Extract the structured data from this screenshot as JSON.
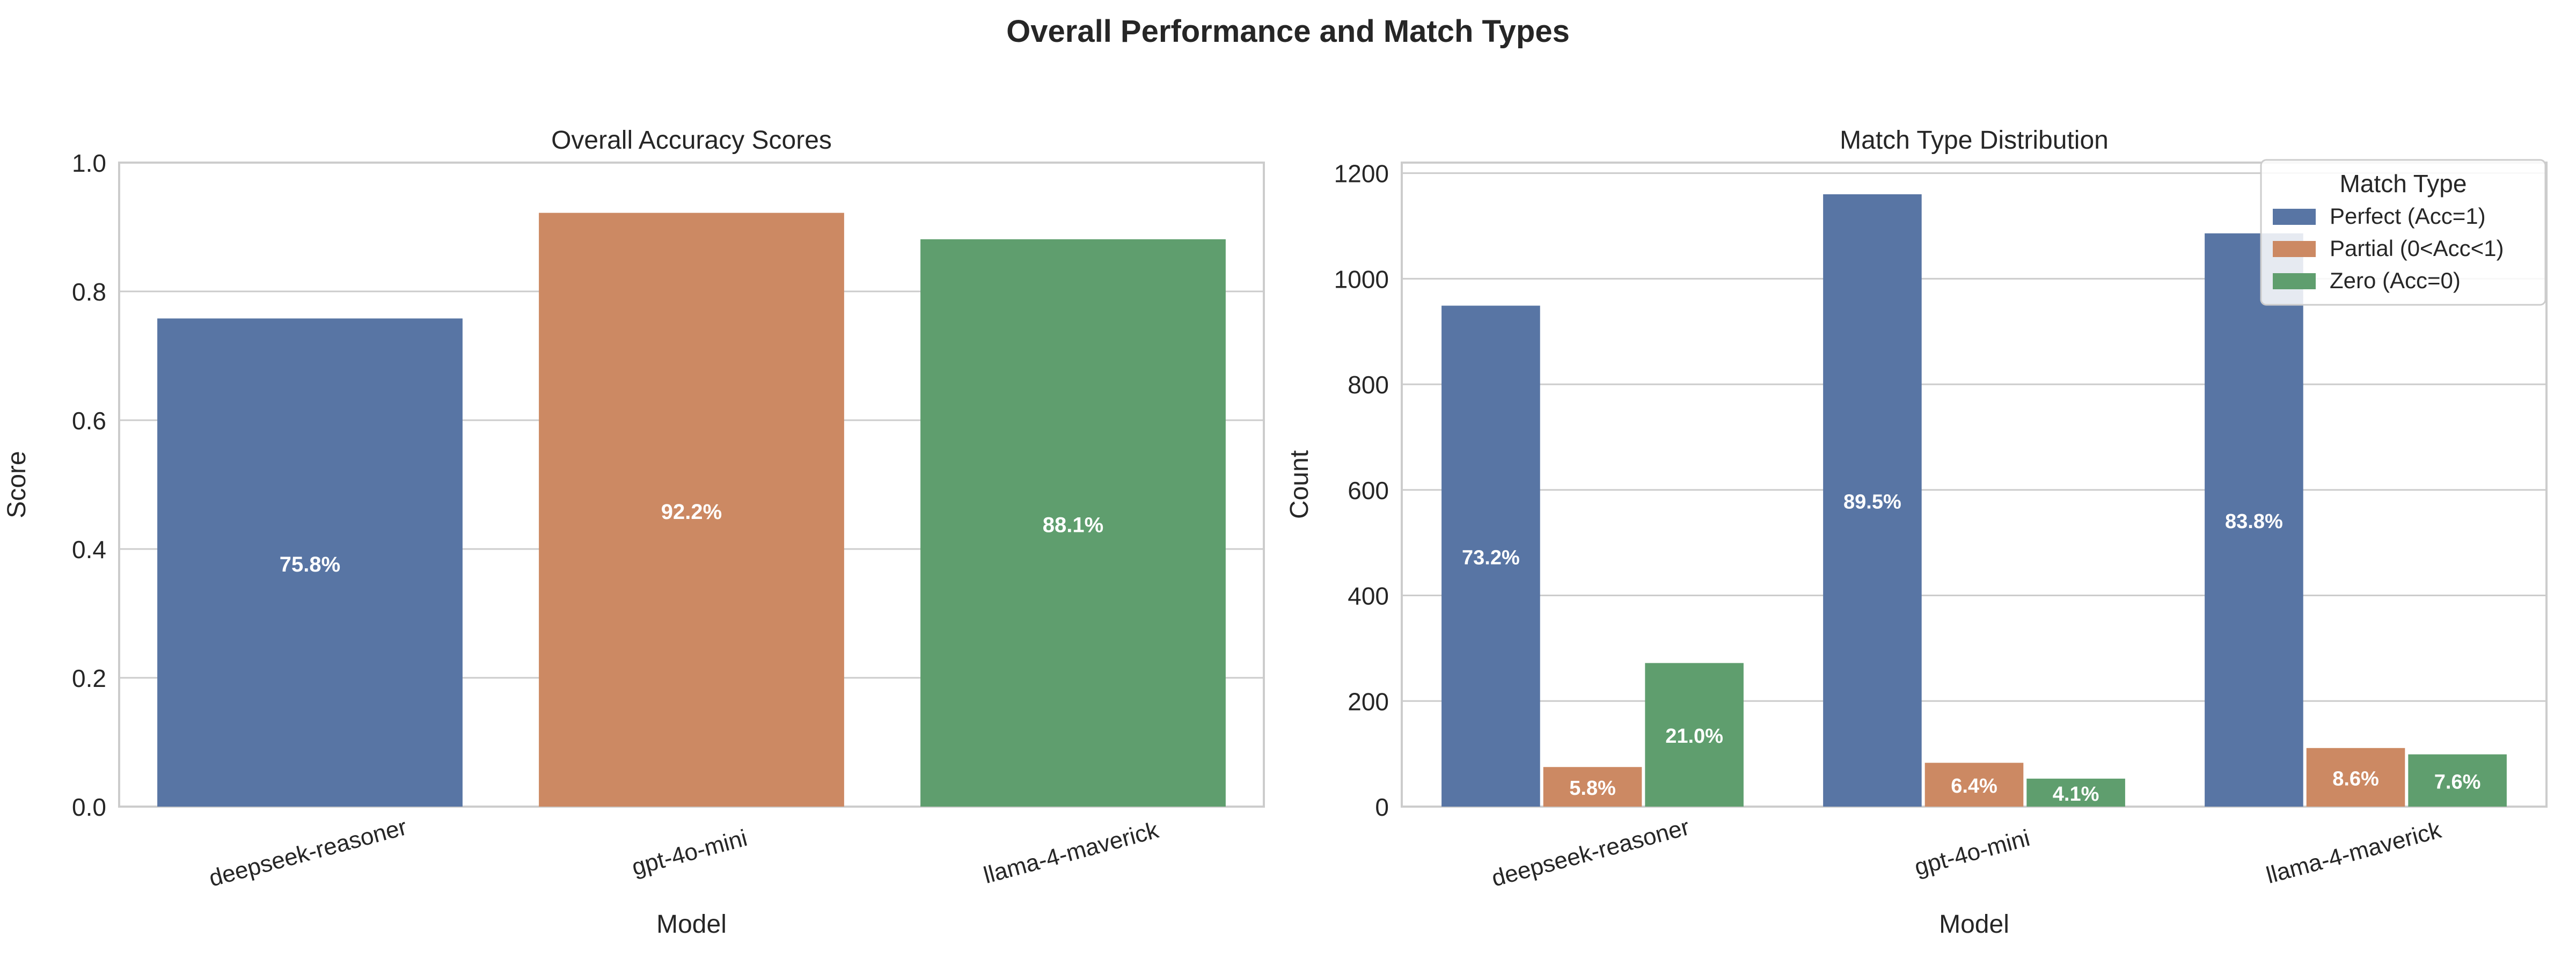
{
  "suptitle": "Overall Performance and Match Types",
  "colors": {
    "blue": "#5875a4",
    "orange": "#cc8963",
    "green": "#5f9e6e",
    "grid": "#cccccc",
    "frame": "#cccccc",
    "text": "#262626",
    "label_text": "#ffffff"
  },
  "chart_data": [
    {
      "type": "bar",
      "title": "Overall Accuracy Scores",
      "xlabel": "Model",
      "ylabel": "Score",
      "categories": [
        "deepseek-reasoner",
        "gpt-4o-mini",
        "llama-4-maverick"
      ],
      "values": [
        0.758,
        0.922,
        0.881
      ],
      "data_labels": [
        "75.8%",
        "92.2%",
        "88.1%"
      ],
      "bar_colors": [
        "#5875a4",
        "#cc8963",
        "#5f9e6e"
      ],
      "ylim": [
        0,
        1.0
      ],
      "yticks": [
        0.0,
        0.2,
        0.4,
        0.6,
        0.8,
        1.0
      ],
      "ytick_labels": [
        "0.0",
        "0.2",
        "0.4",
        "0.6",
        "0.8",
        "1.0"
      ],
      "grid": true
    },
    {
      "type": "bar",
      "title": "Match Type Distribution",
      "xlabel": "Model",
      "ylabel": "Count",
      "categories": [
        "deepseek-reasoner",
        "gpt-4o-mini",
        "llama-4-maverick"
      ],
      "series": [
        {
          "name": "Perfect (Acc=1)",
          "values": [
            949,
            1160,
            1086
          ],
          "data_labels": [
            "73.2%",
            "89.5%",
            "83.8%"
          ],
          "color": "#5875a4"
        },
        {
          "name": "Partial (0<Acc<1)",
          "values": [
            75,
            83,
            111
          ],
          "data_labels": [
            "5.8%",
            "6.4%",
            "8.6%"
          ],
          "color": "#cc8963"
        },
        {
          "name": "Zero (Acc=0)",
          "values": [
            272,
            53,
            99
          ],
          "data_labels": [
            "21.0%",
            "4.1%",
            "7.6%"
          ],
          "color": "#5f9e6e"
        }
      ],
      "ylim": [
        0,
        1220
      ],
      "yticks": [
        0,
        200,
        400,
        600,
        800,
        1000,
        1200
      ],
      "ytick_labels": [
        "0",
        "200",
        "400",
        "600",
        "800",
        "1000",
        "1200"
      ],
      "legend": {
        "title": "Match Type",
        "placement": "top-right"
      },
      "grid": true
    }
  ]
}
